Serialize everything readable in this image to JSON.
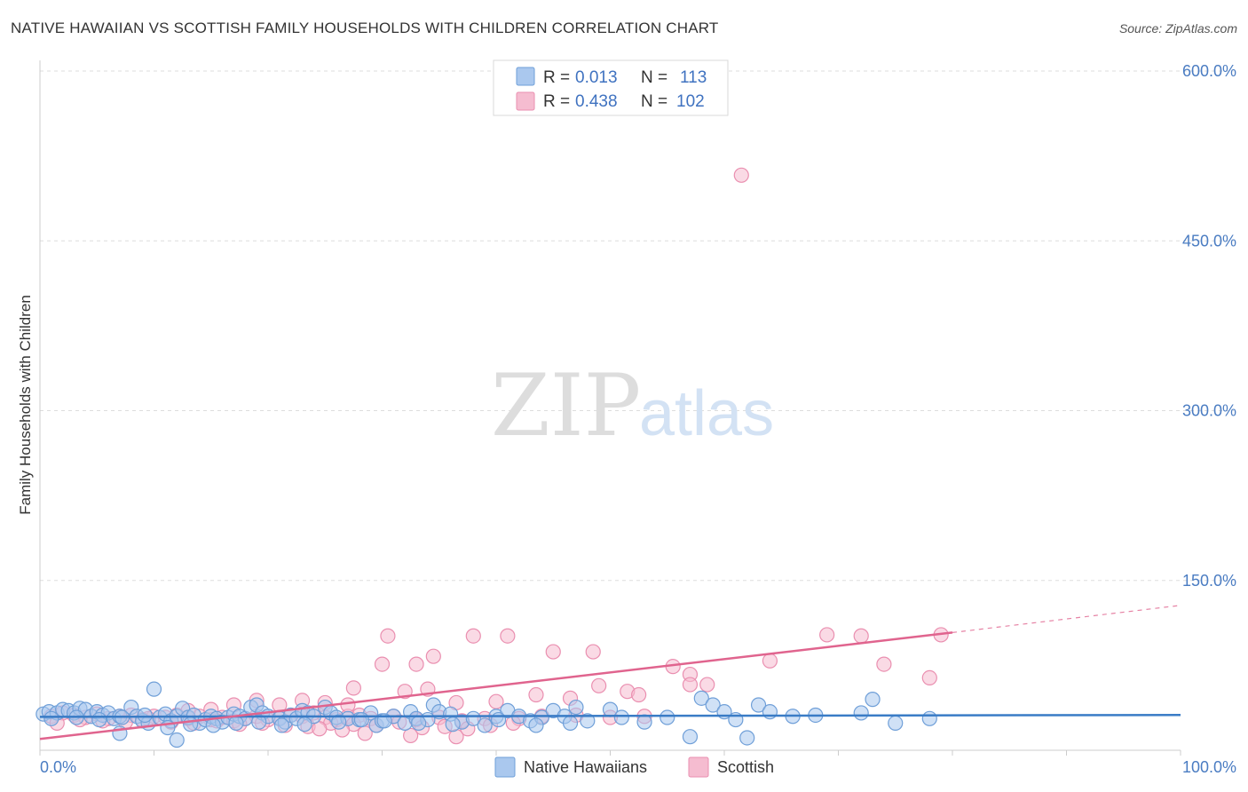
{
  "title": "NATIVE HAWAIIAN VS SCOTTISH FAMILY HOUSEHOLDS WITH CHILDREN CORRELATION CHART",
  "source": "Source: ZipAtlas.com",
  "watermark": {
    "zip": "ZIP",
    "atlas": "atlas"
  },
  "colors": {
    "blue_fill": "#aac8ee",
    "blue_stroke": "#6f9fd8",
    "blue_line": "#3a7cc6",
    "pink_fill": "#f5bcd0",
    "pink_stroke": "#ea8fb0",
    "pink_line": "#e0648e",
    "tick_text": "#4a7cc2",
    "grid": "#dddddd"
  },
  "stats": {
    "r_label": "R =",
    "n_label": "N =",
    "native": {
      "r": "0.013",
      "n": "113"
    },
    "scottish": {
      "r": "0.438",
      "n": "102"
    }
  },
  "chart_data": {
    "type": "scatter",
    "title": "NATIVE HAWAIIAN VS SCOTTISH FAMILY HOUSEHOLDS WITH CHILDREN CORRELATION CHART",
    "xlabel": "",
    "ylabel": "Family Households with Children",
    "xlim": [
      0,
      100
    ],
    "ylim": [
      0,
      600
    ],
    "x_tick_labels": [
      "0.0%",
      "100.0%"
    ],
    "y_ticks": [
      150,
      300,
      450,
      600
    ],
    "y_tick_labels": [
      "150.0%",
      "300.0%",
      "450.0%",
      "600.0%"
    ],
    "legend": [
      "Native Hawaiians",
      "Scottish"
    ],
    "series": [
      {
        "name": "Native Hawaiians",
        "trend": {
          "x": [
            0,
            100
          ],
          "y": [
            29.5,
            31.2
          ]
        },
        "points": [
          [
            0.3,
            32
          ],
          [
            0.8,
            34
          ],
          [
            1.5,
            33
          ],
          [
            2,
            36
          ],
          [
            2.5,
            35
          ],
          [
            3,
            33
          ],
          [
            3.5,
            37
          ],
          [
            4,
            36
          ],
          [
            4.5,
            30
          ],
          [
            5,
            34
          ],
          [
            5.5,
            31
          ],
          [
            6,
            33
          ],
          [
            6.5,
            28
          ],
          [
            7,
            30
          ],
          [
            8,
            38
          ],
          [
            8.5,
            30
          ],
          [
            9,
            26
          ],
          [
            9.5,
            24
          ],
          [
            10,
            54
          ],
          [
            10.5,
            29
          ],
          [
            11,
            32
          ],
          [
            11.5,
            26
          ],
          [
            12,
            30
          ],
          [
            12.5,
            37
          ],
          [
            13,
            29
          ],
          [
            13.5,
            31
          ],
          [
            14,
            24
          ],
          [
            14.5,
            27
          ],
          [
            15,
            30
          ],
          [
            15.5,
            28
          ],
          [
            16,
            25
          ],
          [
            16.5,
            29
          ],
          [
            17,
            32
          ],
          [
            17.5,
            30
          ],
          [
            18,
            28
          ],
          [
            18.5,
            38
          ],
          [
            19,
            40
          ],
          [
            19.5,
            33
          ],
          [
            20,
            30
          ],
          [
            21,
            28
          ],
          [
            21.5,
            25
          ],
          [
            22,
            31
          ],
          [
            22.5,
            28
          ],
          [
            23,
            35
          ],
          [
            23.5,
            33
          ],
          [
            24,
            30
          ],
          [
            25,
            38
          ],
          [
            25.5,
            33
          ],
          [
            26,
            29
          ],
          [
            27,
            28
          ],
          [
            28,
            27
          ],
          [
            29,
            33
          ],
          [
            29.5,
            22
          ],
          [
            30,
            26
          ],
          [
            31,
            30
          ],
          [
            32,
            24
          ],
          [
            32.5,
            34
          ],
          [
            33,
            28
          ],
          [
            34,
            27
          ],
          [
            34.5,
            40
          ],
          [
            35,
            34
          ],
          [
            36,
            32
          ],
          [
            37,
            25
          ],
          [
            38,
            28
          ],
          [
            39,
            22
          ],
          [
            40,
            30
          ],
          [
            41,
            35
          ],
          [
            42,
            30
          ],
          [
            43,
            26
          ],
          [
            44,
            29
          ],
          [
            45,
            35
          ],
          [
            46,
            30
          ],
          [
            47,
            38
          ],
          [
            48,
            26
          ],
          [
            50,
            36
          ],
          [
            51,
            29
          ],
          [
            53,
            25
          ],
          [
            55,
            29
          ],
          [
            58,
            46
          ],
          [
            59,
            40
          ],
          [
            60,
            34
          ],
          [
            61,
            27
          ],
          [
            63,
            40
          ],
          [
            64,
            34
          ],
          [
            66,
            30
          ],
          [
            68,
            31
          ],
          [
            72,
            33
          ],
          [
            73,
            45
          ],
          [
            75,
            24
          ],
          [
            78,
            28
          ],
          [
            1,
            28
          ],
          [
            3.2,
            29
          ],
          [
            5.2,
            27
          ],
          [
            7.2,
            29
          ],
          [
            9.2,
            31
          ],
          [
            11.2,
            20
          ],
          [
            13.2,
            23
          ],
          [
            15.2,
            22
          ],
          [
            17.2,
            24
          ],
          [
            19.2,
            25
          ],
          [
            21.2,
            22
          ],
          [
            23.2,
            23
          ],
          [
            26.2,
            25
          ],
          [
            28.2,
            27
          ],
          [
            30.2,
            26
          ],
          [
            33.2,
            24
          ],
          [
            36.2,
            23
          ],
          [
            40.2,
            27
          ],
          [
            43.5,
            22
          ],
          [
            46.5,
            24
          ],
          [
            7,
            15
          ],
          [
            12,
            9
          ],
          [
            57,
            12
          ],
          [
            62,
            11
          ]
        ]
      },
      {
        "name": "Scottish",
        "trend": {
          "x": [
            0,
            80
          ],
          "y": [
            10,
            104
          ]
        },
        "trend_dashed": {
          "x": [
            80,
            100
          ],
          "y": [
            104,
            128
          ]
        },
        "points": [
          [
            61.5,
            508
          ],
          [
            30.5,
            101
          ],
          [
            38,
            101
          ],
          [
            41,
            101
          ],
          [
            45,
            87
          ],
          [
            48.5,
            87
          ],
          [
            30,
            76
          ],
          [
            33,
            76
          ],
          [
            34.5,
            83
          ],
          [
            55.5,
            74
          ],
          [
            57,
            67
          ],
          [
            58.5,
            58
          ],
          [
            64,
            79
          ],
          [
            69,
            102
          ],
          [
            72,
            101
          ],
          [
            74,
            76
          ],
          [
            79,
            102
          ],
          [
            78,
            64
          ],
          [
            32,
            52
          ],
          [
            34,
            54
          ],
          [
            27.5,
            55
          ],
          [
            36.5,
            42
          ],
          [
            40,
            43
          ],
          [
            43.5,
            49
          ],
          [
            46.5,
            46
          ],
          [
            49,
            57
          ],
          [
            51.5,
            52
          ],
          [
            52.5,
            49
          ],
          [
            57,
            58
          ],
          [
            1,
            30
          ],
          [
            2,
            33
          ],
          [
            3,
            31
          ],
          [
            4,
            29
          ],
          [
            5,
            32
          ],
          [
            6,
            28
          ],
          [
            7,
            30
          ],
          [
            8,
            31
          ],
          [
            9,
            27
          ],
          [
            10,
            30
          ],
          [
            11,
            29
          ],
          [
            12,
            31
          ],
          [
            13,
            28
          ],
          [
            14,
            30
          ],
          [
            15,
            27
          ],
          [
            16,
            29
          ],
          [
            17,
            26
          ],
          [
            18,
            28
          ],
          [
            19,
            30
          ],
          [
            20,
            27
          ],
          [
            21,
            29
          ],
          [
            22,
            31
          ],
          [
            23,
            30
          ],
          [
            24,
            33
          ],
          [
            25,
            29
          ],
          [
            26,
            27
          ],
          [
            27,
            30
          ],
          [
            28,
            31
          ],
          [
            29,
            28
          ],
          [
            31,
            30
          ],
          [
            33,
            27
          ],
          [
            35,
            29
          ],
          [
            37,
            26
          ],
          [
            39,
            28
          ],
          [
            42,
            28
          ],
          [
            44,
            30
          ],
          [
            47,
            31
          ],
          [
            50,
            29
          ],
          [
            53,
            30
          ],
          [
            1.5,
            24
          ],
          [
            3.5,
            27
          ],
          [
            5.5,
            26
          ],
          [
            7.5,
            25
          ],
          [
            9.5,
            28
          ],
          [
            11.5,
            25
          ],
          [
            13.5,
            24
          ],
          [
            15.5,
            26
          ],
          [
            17.5,
            23
          ],
          [
            19.5,
            24
          ],
          [
            21.5,
            22
          ],
          [
            23.5,
            21
          ],
          [
            25.5,
            24
          ],
          [
            27.5,
            23
          ],
          [
            29.5,
            22
          ],
          [
            31.5,
            25
          ],
          [
            33.5,
            20
          ],
          [
            35.5,
            21
          ],
          [
            37.5,
            19
          ],
          [
            39.5,
            22
          ],
          [
            41.5,
            24
          ],
          [
            17,
            40
          ],
          [
            19,
            44
          ],
          [
            21,
            40
          ],
          [
            23,
            44
          ],
          [
            25,
            42
          ],
          [
            27,
            40
          ],
          [
            24.5,
            19
          ],
          [
            26.5,
            18
          ],
          [
            28.5,
            15
          ],
          [
            32.5,
            13
          ],
          [
            36.5,
            12
          ],
          [
            13,
            35
          ],
          [
            15,
            36
          ]
        ]
      }
    ]
  }
}
